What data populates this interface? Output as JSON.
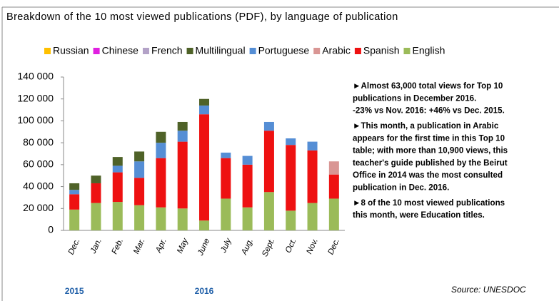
{
  "chart_data": {
    "type": "stacked_bar",
    "title": "Breakdown of the 10 most viewed publications (PDF), by language of publication",
    "categories": [
      "Dec.",
      "Jan.",
      "Feb.",
      "Mar.",
      "Apr.",
      "May",
      "June",
      "July",
      "Aug.",
      "Sept.",
      "Oct.",
      "Nov.",
      "Dec."
    ],
    "year_labels": [
      {
        "label": "2015",
        "category": 0
      },
      {
        "label": "2016",
        "category": 6
      }
    ],
    "series": [
      {
        "name": "Russian",
        "color": "#ffc000",
        "values": [
          0,
          0,
          0,
          0,
          0,
          0,
          0,
          0,
          0,
          0,
          0,
          0,
          0
        ]
      },
      {
        "name": "Chinese",
        "color": "#e020e0",
        "values": [
          0,
          0,
          0,
          0,
          0,
          0,
          0,
          0,
          0,
          0,
          0,
          0,
          0
        ]
      },
      {
        "name": "French",
        "color": "#b3a2c7",
        "values": [
          0,
          0,
          0,
          0,
          0,
          0,
          0,
          0,
          0,
          0,
          0,
          0,
          0
        ]
      },
      {
        "name": "Multilingual",
        "color": "#4f6228",
        "values": [
          6000,
          7000,
          8000,
          9000,
          10000,
          8000,
          6000,
          0,
          0,
          0,
          0,
          0,
          0
        ]
      },
      {
        "name": "Portuguese",
        "color": "#558ed5",
        "values": [
          4000,
          0,
          6000,
          15000,
          14000,
          10000,
          8000,
          5000,
          8000,
          8000,
          6000,
          8000,
          0
        ]
      },
      {
        "name": "Arabic",
        "color": "#d99694",
        "values": [
          0,
          0,
          0,
          0,
          0,
          0,
          0,
          0,
          0,
          0,
          0,
          0,
          12000
        ]
      },
      {
        "name": "Spanish",
        "color": "#ee1111",
        "values": [
          14000,
          18000,
          27000,
          25000,
          45000,
          61000,
          97000,
          37000,
          39000,
          56000,
          60000,
          48000,
          22000
        ]
      },
      {
        "name": "English",
        "color": "#9bbb59",
        "values": [
          19000,
          25000,
          26000,
          23000,
          21000,
          20000,
          9000,
          29000,
          21000,
          35000,
          18000,
          25000,
          29000
        ]
      }
    ],
    "ylim": [
      0,
      140000
    ],
    "yticks": [
      0,
      {
        "value": 20000,
        "label": "20 000"
      },
      {
        "value": 40000,
        "label": "40 000"
      },
      {
        "value": 60000,
        "label": "60 000"
      },
      {
        "value": 80000,
        "label": "80 000"
      },
      {
        "value": 100000,
        "label": "100 000"
      },
      {
        "value": 120000,
        "label": "120 000"
      },
      {
        "value": 140000,
        "label": "140 000"
      }
    ],
    "notes": [
      "►Almost 63,000 total views for Top 10",
      "publications in December 2016.",
      "-23% vs Nov. 2016: +46% vs Dec. 2015.",
      "►This month, a publication in Arabic",
      "appears for the first time in this Top 10",
      "table; with more than 10,900 views, this",
      "teacher's guide published by the Beirut",
      "Office in 2014 was the most consulted",
      "publication in Dec. 2016.",
      "►8 of the 10 most viewed publications",
      "this month, were Education titles."
    ],
    "source": "Source: UNESDOC"
  }
}
